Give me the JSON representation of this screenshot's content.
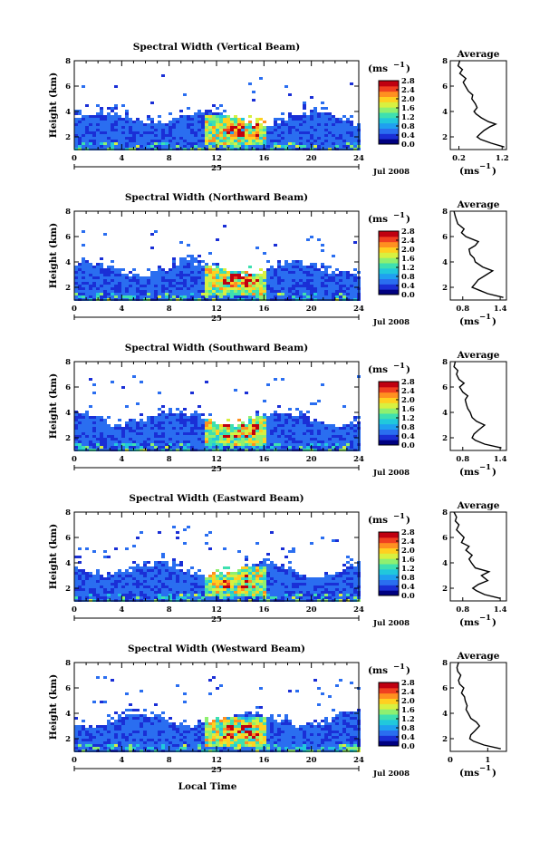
{
  "figure": {
    "xlabel": "Local Time",
    "date_label": "Jul 2008",
    "day_label": "25",
    "ylabel": "Height (km)",
    "unit": "(ms",
    "unit_exp": "−1",
    "avg_title": "Average",
    "avg_xlabel": "(ms",
    "colorbar_ticks": [
      "0.0",
      "0.4",
      "0.8",
      "1.2",
      "1.6",
      "2.0",
      "2.4",
      "2.8"
    ],
    "colormap": [
      "#000080",
      "#1a2fd6",
      "#2a6ef0",
      "#1fa0f0",
      "#21c8dc",
      "#3ee0b0",
      "#8ef070",
      "#d8f040",
      "#ffd020",
      "#ff9020",
      "#f04020",
      "#c00010"
    ]
  },
  "chart_data": [
    {
      "type": "heatmap",
      "title": "Spectral Width (Vertical Beam)",
      "xlabel": "Local Time",
      "ylabel": "Height (km)",
      "xlim": [
        0,
        24
      ],
      "ylim": [
        1,
        8
      ],
      "xticks": [
        0,
        4,
        8,
        12,
        16,
        20,
        24
      ],
      "yticks": [
        2,
        4,
        6,
        8
      ],
      "colorbar": {
        "label": "(ms-1)",
        "range": [
          0.0,
          2.8
        ]
      },
      "avg_profile": {
        "title": "Average",
        "xlabel": "(ms-1)",
        "xticks": [
          "0.2",
          "1.2"
        ],
        "xlim": [
          0.0,
          1.3
        ],
        "height": [
          1.2,
          1.5,
          1.8,
          2.0,
          2.2,
          2.5,
          2.8,
          3.0,
          3.2,
          3.5,
          3.8,
          4.0,
          4.3,
          4.6,
          5.0,
          5.3,
          5.6,
          6.0,
          6.3,
          6.6,
          7.0,
          7.3,
          7.6,
          8.0
        ],
        "width": [
          1.25,
          0.95,
          0.7,
          0.62,
          0.68,
          0.78,
          0.92,
          1.05,
          0.88,
          0.72,
          0.6,
          0.55,
          0.62,
          0.58,
          0.5,
          0.52,
          0.42,
          0.35,
          0.3,
          0.36,
          0.22,
          0.28,
          0.18,
          0.22
        ]
      }
    },
    {
      "type": "heatmap",
      "title": "Spectral Width (Northward Beam)",
      "xlabel": "Local Time",
      "ylabel": "Height (km)",
      "xlim": [
        0,
        24
      ],
      "ylim": [
        1,
        8
      ],
      "xticks": [
        0,
        4,
        8,
        12,
        16,
        20,
        24
      ],
      "yticks": [
        2,
        4,
        6,
        8
      ],
      "colorbar": {
        "label": "(ms-1)",
        "range": [
          0.0,
          2.8
        ]
      },
      "avg_profile": {
        "title": "Average",
        "xlabel": "(ms-1)",
        "xticks": [
          "0.8",
          "1.4"
        ],
        "xlim": [
          0.6,
          1.5
        ],
        "height": [
          1.2,
          1.5,
          1.8,
          2.0,
          2.3,
          2.6,
          3.0,
          3.3,
          3.6,
          4.0,
          4.3,
          4.6,
          5.0,
          5.3,
          5.6,
          6.0,
          6.3,
          6.6,
          7.0,
          7.3,
          7.6,
          8.0
        ],
        "width": [
          1.45,
          1.2,
          1.05,
          0.95,
          1.0,
          1.05,
          1.18,
          1.28,
          1.12,
          1.0,
          0.98,
          0.92,
          0.9,
          1.0,
          1.05,
          0.85,
          0.78,
          0.82,
          0.72,
          0.7,
          0.68,
          0.66
        ]
      }
    },
    {
      "type": "heatmap",
      "title": "Spectral Width (Southward Beam)",
      "xlabel": "Local Time",
      "ylabel": "Height (km)",
      "xlim": [
        0,
        24
      ],
      "ylim": [
        1,
        8
      ],
      "xticks": [
        0,
        4,
        8,
        12,
        16,
        20,
        24
      ],
      "yticks": [
        2,
        4,
        6,
        8
      ],
      "colorbar": {
        "label": "(ms-1)",
        "range": [
          0.0,
          2.8
        ]
      },
      "avg_profile": {
        "title": "Average",
        "xlabel": "(ms-1)",
        "xticks": [
          "0.8",
          "1.4"
        ],
        "xlim": [
          0.6,
          1.5
        ],
        "height": [
          1.2,
          1.5,
          1.8,
          2.0,
          2.3,
          2.6,
          3.0,
          3.3,
          3.6,
          4.0,
          4.3,
          4.6,
          5.0,
          5.3,
          5.6,
          6.0,
          6.3,
          6.6,
          7.0,
          7.3,
          7.6,
          8.0
        ],
        "width": [
          1.42,
          1.15,
          1.0,
          0.95,
          0.98,
          1.05,
          1.15,
          1.02,
          0.95,
          0.92,
          0.88,
          0.86,
          0.84,
          0.88,
          0.8,
          0.75,
          0.82,
          0.74,
          0.7,
          0.72,
          0.66,
          0.68
        ]
      }
    },
    {
      "type": "heatmap",
      "title": "Spectral Width (Eastward Beam)",
      "xlabel": "Local Time",
      "ylabel": "Height (km)",
      "xlim": [
        0,
        24
      ],
      "ylim": [
        1,
        8
      ],
      "xticks": [
        0,
        4,
        8,
        12,
        16,
        20,
        24
      ],
      "yticks": [
        2,
        4,
        6,
        8
      ],
      "colorbar": {
        "label": "(ms-1)",
        "range": [
          0.0,
          2.8
        ]
      },
      "avg_profile": {
        "title": "Average",
        "xlabel": "(ms-1)",
        "xticks": [
          "0.8",
          "1.4"
        ],
        "xlim": [
          0.6,
          1.5
        ],
        "height": [
          1.2,
          1.5,
          1.8,
          2.0,
          2.3,
          2.6,
          3.0,
          3.3,
          3.6,
          4.0,
          4.3,
          4.6,
          5.0,
          5.3,
          5.6,
          6.0,
          6.3,
          6.6,
          7.0,
          7.3,
          7.6,
          8.0
        ],
        "width": [
          1.4,
          1.15,
          1.02,
          0.96,
          1.05,
          1.2,
          1.1,
          1.22,
          1.0,
          0.94,
          0.9,
          0.95,
          0.85,
          0.9,
          0.78,
          0.82,
          0.76,
          0.7,
          0.74,
          0.68,
          0.7,
          0.66
        ]
      }
    },
    {
      "type": "heatmap",
      "title": "Spectral Width (Westward Beam)",
      "xlabel": "Local Time",
      "ylabel": "Height (km)",
      "xlim": [
        0,
        24
      ],
      "ylim": [
        1,
        8
      ],
      "xticks": [
        0,
        4,
        8,
        12,
        16,
        20,
        24
      ],
      "yticks": [
        2,
        4,
        6,
        8
      ],
      "colorbar": {
        "label": "(ms-1)",
        "range": [
          0.0,
          2.8
        ]
      },
      "avg_profile": {
        "title": "Average",
        "xlabel": "(ms-1)",
        "xticks": [
          "0",
          "1"
        ],
        "xlim": [
          0.0,
          1.5
        ],
        "height": [
          1.2,
          1.5,
          1.8,
          2.0,
          2.3,
          2.6,
          3.0,
          3.3,
          3.6,
          4.0,
          4.3,
          4.6,
          5.0,
          5.3,
          5.6,
          6.0,
          6.3,
          6.6,
          7.0,
          7.3,
          7.6,
          8.0
        ],
        "width": [
          1.35,
          0.9,
          0.62,
          0.52,
          0.55,
          0.65,
          0.78,
          0.7,
          0.55,
          0.48,
          0.42,
          0.45,
          0.4,
          0.38,
          0.3,
          0.36,
          0.25,
          0.22,
          0.28,
          0.2,
          0.18,
          0.22
        ]
      }
    }
  ]
}
